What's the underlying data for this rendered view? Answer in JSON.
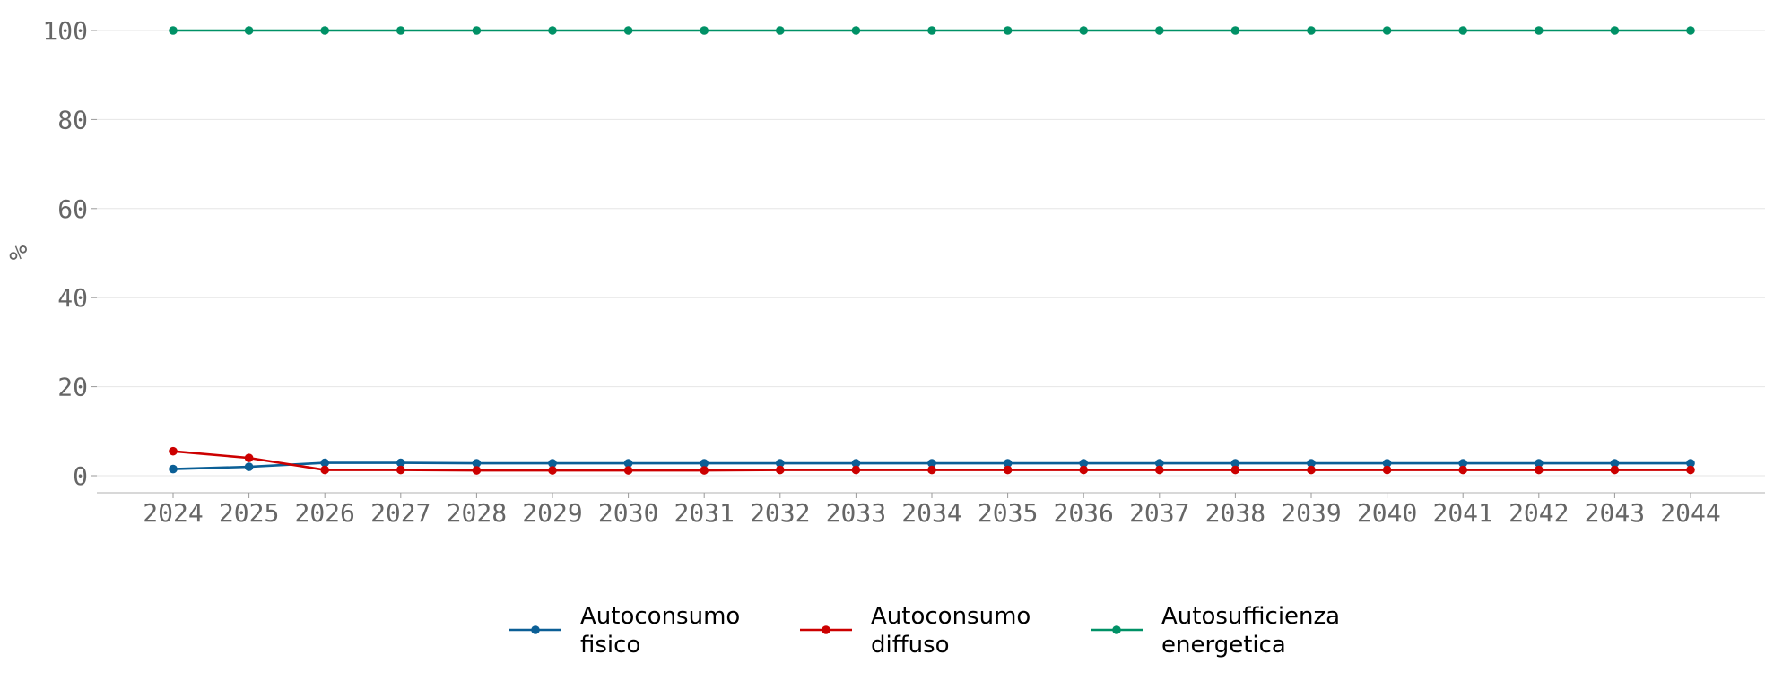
{
  "chart_data": {
    "type": "line",
    "title": "",
    "xlabel": "",
    "ylabel": "%",
    "ylim": [
      0,
      100
    ],
    "yticks": [
      0,
      20,
      40,
      60,
      80,
      100
    ],
    "grid": "horizontal",
    "legend_position": "bottom-center",
    "x": [
      "2024",
      "2025",
      "2026",
      "2027",
      "2028",
      "2029",
      "2030",
      "2031",
      "2032",
      "2033",
      "2034",
      "2035",
      "2036",
      "2037",
      "2038",
      "2039",
      "2040",
      "2041",
      "2042",
      "2043",
      "2044"
    ],
    "series": [
      {
        "name": "Autoconsumo fisico",
        "label_lines": [
          "Autoconsumo",
          "fisico"
        ],
        "color": "#0b5f96",
        "values": [
          1.5,
          2.0,
          2.9,
          2.9,
          2.8,
          2.8,
          2.8,
          2.8,
          2.8,
          2.8,
          2.8,
          2.8,
          2.8,
          2.8,
          2.8,
          2.8,
          2.8,
          2.8,
          2.8,
          2.8,
          2.8
        ]
      },
      {
        "name": "Autoconsumo diffuso",
        "label_lines": [
          "Autoconsumo",
          "diffuso"
        ],
        "color": "#cc0000",
        "values": [
          5.5,
          4.0,
          1.3,
          1.3,
          1.2,
          1.2,
          1.2,
          1.2,
          1.3,
          1.3,
          1.3,
          1.3,
          1.3,
          1.3,
          1.3,
          1.3,
          1.3,
          1.3,
          1.3,
          1.3,
          1.3
        ]
      },
      {
        "name": "Autosufficienza energetica",
        "label_lines": [
          "Autosufficienza",
          "energetica"
        ],
        "color": "#009166",
        "values": [
          100,
          100,
          100,
          100,
          100,
          100,
          100,
          100,
          100,
          100,
          100,
          100,
          100,
          100,
          100,
          100,
          100,
          100,
          100,
          100,
          100
        ]
      }
    ]
  }
}
